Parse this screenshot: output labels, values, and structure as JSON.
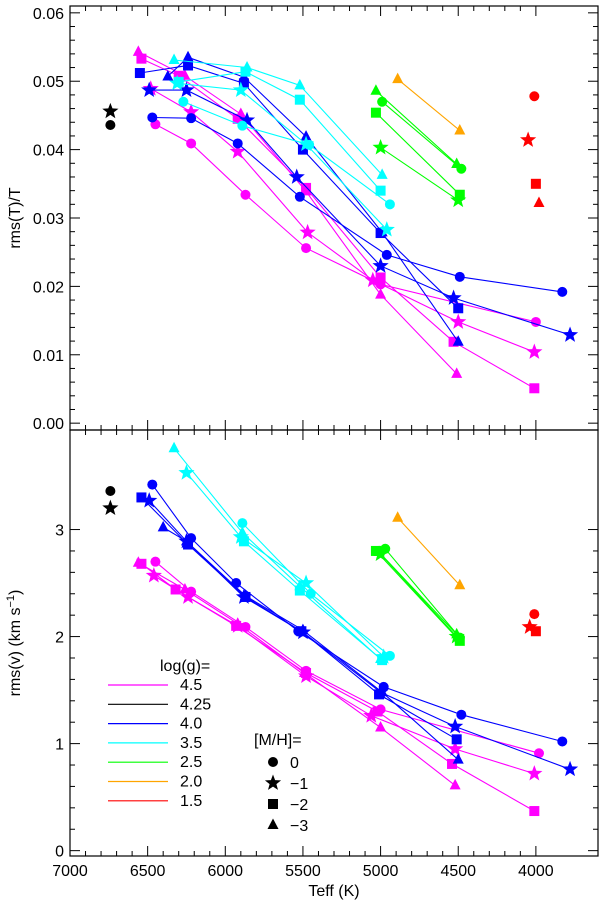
{
  "chart_data": [
    {
      "type": "line",
      "panel": "top",
      "ylabel": "rms(T)/T",
      "xlabel": "",
      "xlim": [
        7000,
        3600
      ],
      "ylim": [
        -0.001,
        0.061
      ],
      "yticks": [
        0.0,
        0.01,
        0.02,
        0.03,
        0.04,
        0.05,
        0.06
      ],
      "yticklabels": [
        "0.00",
        "0.01",
        "0.02",
        "0.03",
        "0.04",
        "0.05",
        "0.06"
      ],
      "series": [
        {
          "name": "log(g)=4.5 [M/H]=0",
          "logg": "4.5",
          "marker": "circle",
          "x": [
            6450,
            6220,
            5870,
            5480,
            5000,
            4000
          ],
          "y": [
            0.0437,
            0.0409,
            0.0334,
            0.0256,
            0.0203,
            0.0148
          ]
        },
        {
          "name": "log(g)=4.5 [M/H]=-1",
          "logg": "4.5",
          "marker": "star",
          "x": [
            6480,
            6220,
            5920,
            5470,
            5050,
            4500,
            4010
          ],
          "y": [
            0.0489,
            0.0455,
            0.0397,
            0.0279,
            0.0209,
            0.0148,
            0.0104
          ]
        },
        {
          "name": "log(g)=4.5 [M/H]=-2",
          "logg": "4.5",
          "marker": "square",
          "x": [
            6540,
            6300,
            5920,
            5480,
            5000,
            4530,
            4010
          ],
          "y": [
            0.0533,
            0.0508,
            0.0445,
            0.0344,
            0.0213,
            0.0119,
            0.0051
          ]
        },
        {
          "name": "log(g)=4.5 [M/H]=-3",
          "logg": "4.5",
          "marker": "triangle",
          "x": [
            6560,
            6260,
            5900,
            5480,
            5000,
            4510
          ],
          "y": [
            0.0543,
            0.0508,
            0.0452,
            0.0339,
            0.0188,
            0.0072
          ]
        },
        {
          "name": "log(g)=4.25 [M/H]=0",
          "logg": "4.25",
          "marker": "circle",
          "x": [
            6740
          ],
          "y": [
            0.0436
          ]
        },
        {
          "name": "log(g)=4.25 [M/H]=-1",
          "logg": "4.25",
          "marker": "star",
          "x": [
            6740
          ],
          "y": [
            0.0456
          ]
        },
        {
          "name": "log(g)=4.0 [M/H]=0",
          "logg": "4.0",
          "marker": "circle",
          "x": [
            6470,
            6220,
            5920,
            5520,
            4960,
            4490,
            3830
          ],
          "y": [
            0.0447,
            0.0446,
            0.0409,
            0.0331,
            0.0246,
            0.0214,
            0.0192
          ]
        },
        {
          "name": "log(g)=4.0 [M/H]=-1",
          "logg": "4.0",
          "marker": "star",
          "x": [
            6490,
            6250,
            5860,
            5540,
            5000,
            4530,
            3780
          ],
          "y": [
            0.0487,
            0.0487,
            0.0443,
            0.036,
            0.023,
            0.0183,
            0.0129
          ]
        },
        {
          "name": "log(g)=4.0 [M/H]=-2",
          "logg": "4.0",
          "marker": "square",
          "x": [
            6550,
            6240,
            5880,
            5500,
            5000,
            4500
          ],
          "y": [
            0.0512,
            0.0523,
            0.0497,
            0.04,
            0.0278,
            0.0168
          ]
        },
        {
          "name": "log(g)=4.0 [M/H]=-3",
          "logg": "4.0",
          "marker": "triangle",
          "x": [
            6370,
            6240,
            5880,
            5480,
            4990,
            4500
          ],
          "y": [
            0.0507,
            0.0535,
            0.0506,
            0.0419,
            0.0279,
            0.0119
          ]
        },
        {
          "name": "log(g)=3.5 [M/H]=0",
          "logg": "3.5",
          "marker": "circle",
          "x": [
            6270,
            5890,
            5460,
            4940
          ],
          "y": [
            0.047,
            0.0435,
            0.0407,
            0.032
          ]
        },
        {
          "name": "log(g)=3.5 [M/H]=-1",
          "logg": "3.5",
          "marker": "star",
          "x": [
            6310,
            5900,
            5480,
            4960
          ],
          "y": [
            0.0497,
            0.0487,
            0.0408,
            0.0283
          ]
        },
        {
          "name": "log(g)=3.5 [M/H]=-2",
          "logg": "3.5",
          "marker": "square",
          "x": [
            6300,
            5870,
            5520,
            5000
          ],
          "y": [
            0.0499,
            0.0514,
            0.0473,
            0.034
          ]
        },
        {
          "name": "log(g)=3.5 [M/H]=-3",
          "logg": "3.5",
          "marker": "triangle",
          "x": [
            6330,
            5860,
            5520,
            4990
          ],
          "y": [
            0.0531,
            0.052,
            0.0494,
            0.0363
          ]
        },
        {
          "name": "log(g)=2.5 [M/H]=0",
          "logg": "2.5",
          "marker": "circle",
          "x": [
            4990,
            4480
          ],
          "y": [
            0.047,
            0.0372
          ]
        },
        {
          "name": "log(g)=2.5 [M/H]=-1",
          "logg": "2.5",
          "marker": "star",
          "x": [
            5000,
            4500
          ],
          "y": [
            0.0403,
            0.0326
          ]
        },
        {
          "name": "log(g)=2.5 [M/H]=-2",
          "logg": "2.5",
          "marker": "square",
          "x": [
            5030,
            4490
          ],
          "y": [
            0.0454,
            0.0334
          ]
        },
        {
          "name": "log(g)=2.5 [M/H]=-3",
          "logg": "2.5",
          "marker": "triangle",
          "x": [
            5030,
            4510
          ],
          "y": [
            0.0486,
            0.0379
          ]
        },
        {
          "name": "log(g)=2.0 [M/H]=-3",
          "logg": "2.0",
          "marker": "triangle",
          "x": [
            4890,
            4490
          ],
          "y": [
            0.0503,
            0.0428
          ]
        },
        {
          "name": "log(g)=1.5 [M/H]=0",
          "logg": "1.5",
          "marker": "circle",
          "x": [
            4010
          ],
          "y": [
            0.0478
          ]
        },
        {
          "name": "log(g)=1.5 [M/H]=-1",
          "logg": "1.5",
          "marker": "star",
          "x": [
            4050
          ],
          "y": [
            0.0414
          ]
        },
        {
          "name": "log(g)=1.5 [M/H]=-2",
          "logg": "1.5",
          "marker": "square",
          "x": [
            4000
          ],
          "y": [
            0.035
          ]
        },
        {
          "name": "log(g)=1.5 [M/H]=-3",
          "logg": "1.5",
          "marker": "triangle",
          "x": [
            3980
          ],
          "y": [
            0.0322
          ]
        }
      ]
    },
    {
      "type": "line",
      "panel": "bottom",
      "ylabel": "rms(v) (km s",
      "ylabel_sup": "-1",
      "ylabel_end": ")",
      "xlabel": "Teff (K)",
      "xlim": [
        7000,
        3600
      ],
      "ylim": [
        -0.05,
        3.93
      ],
      "xticks": [
        7000,
        6500,
        6000,
        5500,
        5000,
        4500,
        4000
      ],
      "xticklabels": [
        "7000",
        "6500",
        "6000",
        "5500",
        "5000",
        "4500",
        "4000"
      ],
      "yticks": [
        0,
        1,
        2,
        3
      ],
      "yticklabels": [
        "0",
        "1",
        "2",
        "3"
      ],
      "series": [
        {
          "name": "log(g)=4.5 [M/H]=0",
          "logg": "4.5",
          "marker": "circle",
          "x": [
            6450,
            6220,
            5870,
            5480,
            5000,
            3980
          ],
          "y": [
            2.7,
            2.42,
            2.09,
            1.68,
            1.32,
            0.91
          ]
        },
        {
          "name": "log(g)=4.5 [M/H]=-1",
          "logg": "4.5",
          "marker": "star",
          "x": [
            6460,
            6240,
            5920,
            5480,
            5060,
            4520,
            4010
          ],
          "y": [
            2.57,
            2.37,
            2.1,
            1.63,
            1.26,
            0.95,
            0.72
          ]
        },
        {
          "name": "log(g)=4.5 [M/H]=-2",
          "logg": "4.5",
          "marker": "square",
          "x": [
            6540,
            6320,
            5930,
            5480,
            5020,
            4540,
            4010
          ],
          "y": [
            2.68,
            2.44,
            2.1,
            1.66,
            1.3,
            0.81,
            0.37
          ]
        },
        {
          "name": "log(g)=4.5 [M/H]=-3",
          "logg": "4.5",
          "marker": "triangle",
          "x": [
            6560,
            6260,
            5920,
            5490,
            5000,
            4520
          ],
          "y": [
            2.69,
            2.44,
            2.12,
            1.66,
            1.15,
            0.61
          ]
        },
        {
          "name": "log(g)=4.25 [M/H]=0",
          "logg": "4.25",
          "marker": "circle",
          "x": [
            6740
          ],
          "y": [
            3.36
          ]
        },
        {
          "name": "log(g)=4.25 [M/H]=-1",
          "logg": "4.25",
          "marker": "star",
          "x": [
            6740
          ],
          "y": [
            3.2
          ]
        },
        {
          "name": "log(g)=4.0 [M/H]=0",
          "logg": "4.0",
          "marker": "circle",
          "x": [
            6470,
            6220,
            5930,
            5530,
            4980,
            4480,
            3830
          ],
          "y": [
            3.42,
            2.92,
            2.5,
            2.05,
            1.53,
            1.27,
            1.02
          ]
        },
        {
          "name": "log(g)=4.0 [M/H]=-1",
          "logg": "4.0",
          "marker": "star",
          "x": [
            6490,
            6250,
            5880,
            5500,
            5000,
            4520,
            3780
          ],
          "y": [
            3.27,
            2.89,
            2.37,
            2.04,
            1.48,
            1.16,
            0.76
          ]
        },
        {
          "name": "log(g)=4.0 [M/H]=-2",
          "logg": "4.0",
          "marker": "square",
          "x": [
            6540,
            6240,
            5870,
            5510,
            5010,
            4510
          ],
          "y": [
            3.3,
            2.86,
            2.37,
            2.05,
            1.46,
            1.04
          ]
        },
        {
          "name": "log(g)=4.0 [M/H]=-3",
          "logg": "4.0",
          "marker": "triangle",
          "x": [
            6400,
            6250,
            5870,
            5500,
            4990,
            4500
          ],
          "y": [
            3.02,
            2.89,
            2.38,
            2.06,
            1.48,
            0.85
          ]
        },
        {
          "name": "log(g)=3.5 [M/H]=0",
          "logg": "3.5",
          "marker": "circle",
          "x": [
            5890,
            5450,
            4940
          ],
          "y": [
            3.06,
            2.4,
            1.82
          ]
        },
        {
          "name": "log(g)=3.5 [M/H]=-1",
          "logg": "3.5",
          "marker": "star",
          "x": [
            6250,
            5900,
            5480,
            4980
          ],
          "y": [
            3.53,
            2.93,
            2.5,
            1.81
          ]
        },
        {
          "name": "log(g)=3.5 [M/H]=-2",
          "logg": "3.5",
          "marker": "square",
          "x": [
            5880,
            5520,
            4990
          ],
          "y": [
            2.89,
            2.43,
            1.78
          ]
        },
        {
          "name": "log(g)=3.5 [M/H]=-3",
          "logg": "3.5",
          "marker": "triangle",
          "x": [
            6330,
            5890,
            5520,
            5000
          ],
          "y": [
            3.76,
            2.97,
            2.47,
            1.79
          ]
        },
        {
          "name": "log(g)=2.5 [M/H]=0",
          "logg": "2.5",
          "marker": "circle",
          "x": [
            4970,
            4490
          ],
          "y": [
            2.82,
            1.99
          ]
        },
        {
          "name": "log(g)=2.5 [M/H]=-1",
          "logg": "2.5",
          "marker": "star",
          "x": [
            5000,
            4510
          ],
          "y": [
            2.77,
            2.0
          ]
        },
        {
          "name": "log(g)=2.5 [M/H]=-2",
          "logg": "2.5",
          "marker": "square",
          "x": [
            5030,
            4490
          ],
          "y": [
            2.8,
            1.96
          ]
        },
        {
          "name": "log(g)=2.5 [M/H]=-3",
          "logg": "2.5",
          "marker": "triangle",
          "x": [
            5010,
            4510
          ],
          "y": [
            2.79,
            2.02
          ]
        },
        {
          "name": "log(g)=2.0 [M/H]=-3",
          "logg": "2.0",
          "marker": "triangle",
          "x": [
            4890,
            4490
          ],
          "y": [
            3.11,
            2.48
          ]
        },
        {
          "name": "log(g)=1.5 [M/H]=0",
          "logg": "1.5",
          "marker": "circle",
          "x": [
            4010
          ],
          "y": [
            2.21
          ]
        },
        {
          "name": "log(g)=1.5 [M/H]=-1",
          "logg": "1.5",
          "marker": "star",
          "x": [
            4040
          ],
          "y": [
            2.09
          ]
        },
        {
          "name": "log(g)=1.5 [M/H]=-2",
          "logg": "1.5",
          "marker": "square",
          "x": [
            4000
          ],
          "y": [
            2.05
          ]
        }
      ]
    }
  ],
  "legend_logg": {
    "title": "log(g)=",
    "placement": "lower-left of bottom panel",
    "entries": [
      {
        "label": "4.5",
        "color": "#ff00ff"
      },
      {
        "label": "4.25",
        "color": "#000000"
      },
      {
        "label": "4.0",
        "color": "#0000ff"
      },
      {
        "label": "3.5",
        "color": "#00ffff"
      },
      {
        "label": "2.5",
        "color": "#00ff00"
      },
      {
        "label": "2.0",
        "color": "#ffa500"
      },
      {
        "label": "1.5",
        "color": "#ff0000"
      }
    ]
  },
  "legend_mh": {
    "title": "[M/H]=",
    "placement": "lower-center of bottom panel",
    "entries": [
      {
        "label": "0",
        "marker": "circle"
      },
      {
        "label": "−1",
        "marker": "star"
      },
      {
        "label": "−2",
        "marker": "square"
      },
      {
        "label": "−3",
        "marker": "triangle"
      }
    ]
  },
  "colors": {
    "4.5": "#ff00ff",
    "4.25": "#000000",
    "4.0": "#0000ff",
    "3.5": "#00ffff",
    "2.5": "#00ff00",
    "2.0": "#ffa500",
    "1.5": "#ff0000"
  }
}
